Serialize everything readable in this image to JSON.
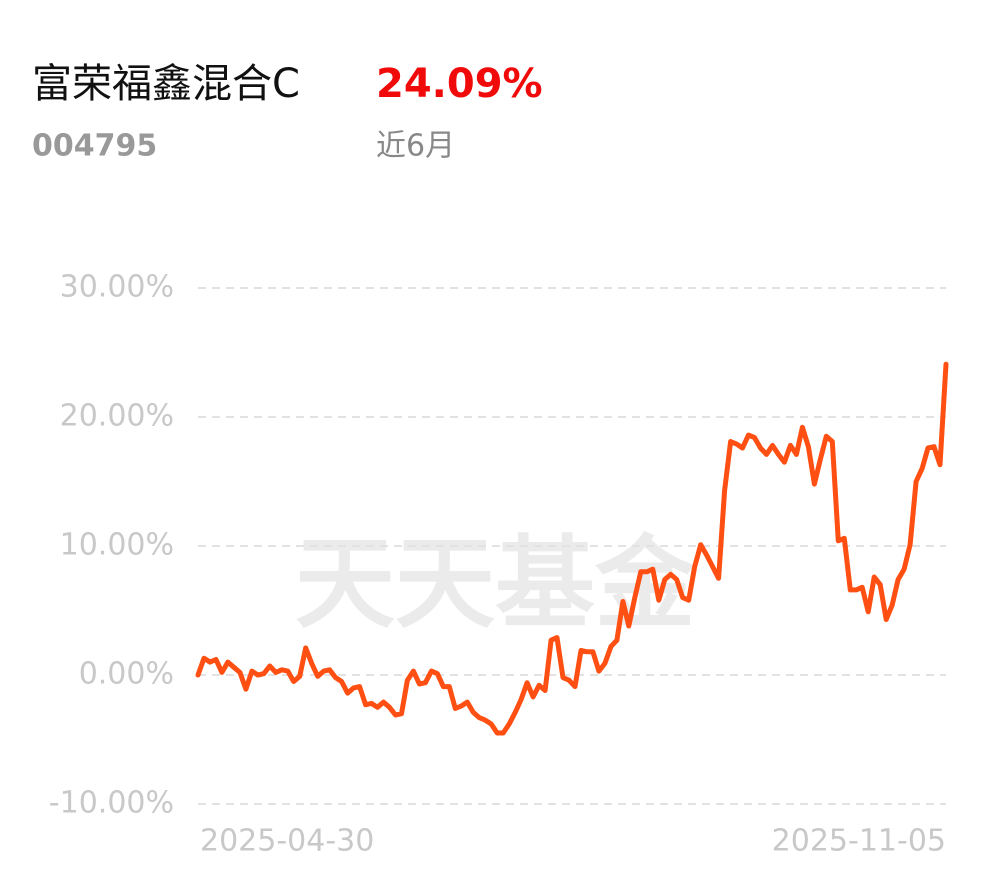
{
  "header": {
    "title": "富荣福鑫混合C",
    "return": "24.09%",
    "code": "004795",
    "period": "近6月"
  },
  "watermark": "天天基金",
  "chart_data": {
    "type": "line",
    "categories": [
      "2025-04-30",
      null,
      null,
      null,
      null,
      null,
      null,
      null,
      null,
      null,
      null,
      null,
      null,
      null,
      null,
      null,
      null,
      null,
      null,
      null,
      null,
      null,
      null,
      null,
      null,
      null,
      null,
      null,
      null,
      null,
      null,
      null,
      null,
      null,
      null,
      null,
      null,
      null,
      null,
      null,
      null,
      null,
      null,
      null,
      null,
      null,
      null,
      null,
      null,
      null,
      null,
      null,
      null,
      null,
      null,
      null,
      null,
      null,
      null,
      null,
      null,
      null,
      null,
      null,
      null,
      null,
      null,
      null,
      null,
      null,
      null,
      null,
      null,
      null,
      null,
      null,
      null,
      null,
      null,
      null,
      null,
      null,
      null,
      null,
      null,
      null,
      null,
      null,
      null,
      null,
      null,
      null,
      null,
      null,
      null,
      null,
      null,
      null,
      null,
      null,
      null,
      null,
      null,
      null,
      null,
      null,
      null,
      null,
      null,
      null,
      null,
      null,
      null,
      null,
      null,
      null,
      null,
      null,
      null,
      null,
      null,
      null,
      null,
      null,
      null,
      "2025-11-05"
    ],
    "series": [
      {
        "name": "富荣福鑫混合C",
        "color": "#ff4f12",
        "values": [
          0,
          1.3,
          1.0,
          1.2,
          0.2,
          1.0,
          0.6,
          0.2,
          -1.1,
          0.3,
          0,
          0.1,
          0.7,
          0.2,
          0.4,
          0.3,
          -0.5,
          -0.1,
          2.1,
          0.9,
          -0.1,
          0.3,
          0.4,
          -0.2,
          -0.5,
          -1.4,
          -1.0,
          -0.9,
          -2.3,
          -2.2,
          -2.5,
          -2.1,
          -2.5,
          -3.1,
          -3.0,
          -0.4,
          0.3,
          -0.7,
          -0.6,
          0.3,
          0.1,
          -0.9,
          -0.9,
          -2.6,
          -2.4,
          -2.1,
          -2.9,
          -3.3,
          -3.5,
          -3.8,
          -4.5,
          -4.5,
          -3.8,
          -2.9,
          -1.9,
          -0.6,
          -1.7,
          -0.8,
          -1.2,
          2.7,
          2.9,
          -0.2,
          -0.4,
          -0.9,
          1.9,
          1.8,
          1.8,
          0.3,
          0.9,
          2.2,
          2.7,
          5.7,
          3.8,
          6.0,
          8.0,
          8.0,
          8.2,
          5.8,
          7.4,
          7.8,
          7.4,
          6.0,
          5.8,
          8.4,
          10.1,
          9.3,
          8.4,
          7.5,
          14.3,
          18.1,
          17.9,
          17.6,
          18.6,
          18.4,
          17.6,
          17.1,
          17.8,
          17.1,
          16.5,
          17.8,
          17.1,
          19.2,
          17.7,
          14.8,
          16.7,
          18.5,
          18.1,
          10.4,
          10.6,
          6.6,
          6.6,
          6.8,
          4.9,
          7.6,
          7.0,
          4.3,
          5.4,
          7.4,
          8.2,
          10.1,
          15.0,
          16.0,
          17.6,
          17.7,
          16.3,
          24.09
        ]
      }
    ],
    "ylim": [
      -10,
      30
    ],
    "yticks": [
      {
        "value": -10,
        "label": "-10.00%"
      },
      {
        "value": 0,
        "label": "0.00%"
      },
      {
        "value": 10,
        "label": "10.00%"
      },
      {
        "value": 20,
        "label": "20.00%"
      },
      {
        "value": 30,
        "label": "30.00%"
      }
    ],
    "grid": true
  }
}
